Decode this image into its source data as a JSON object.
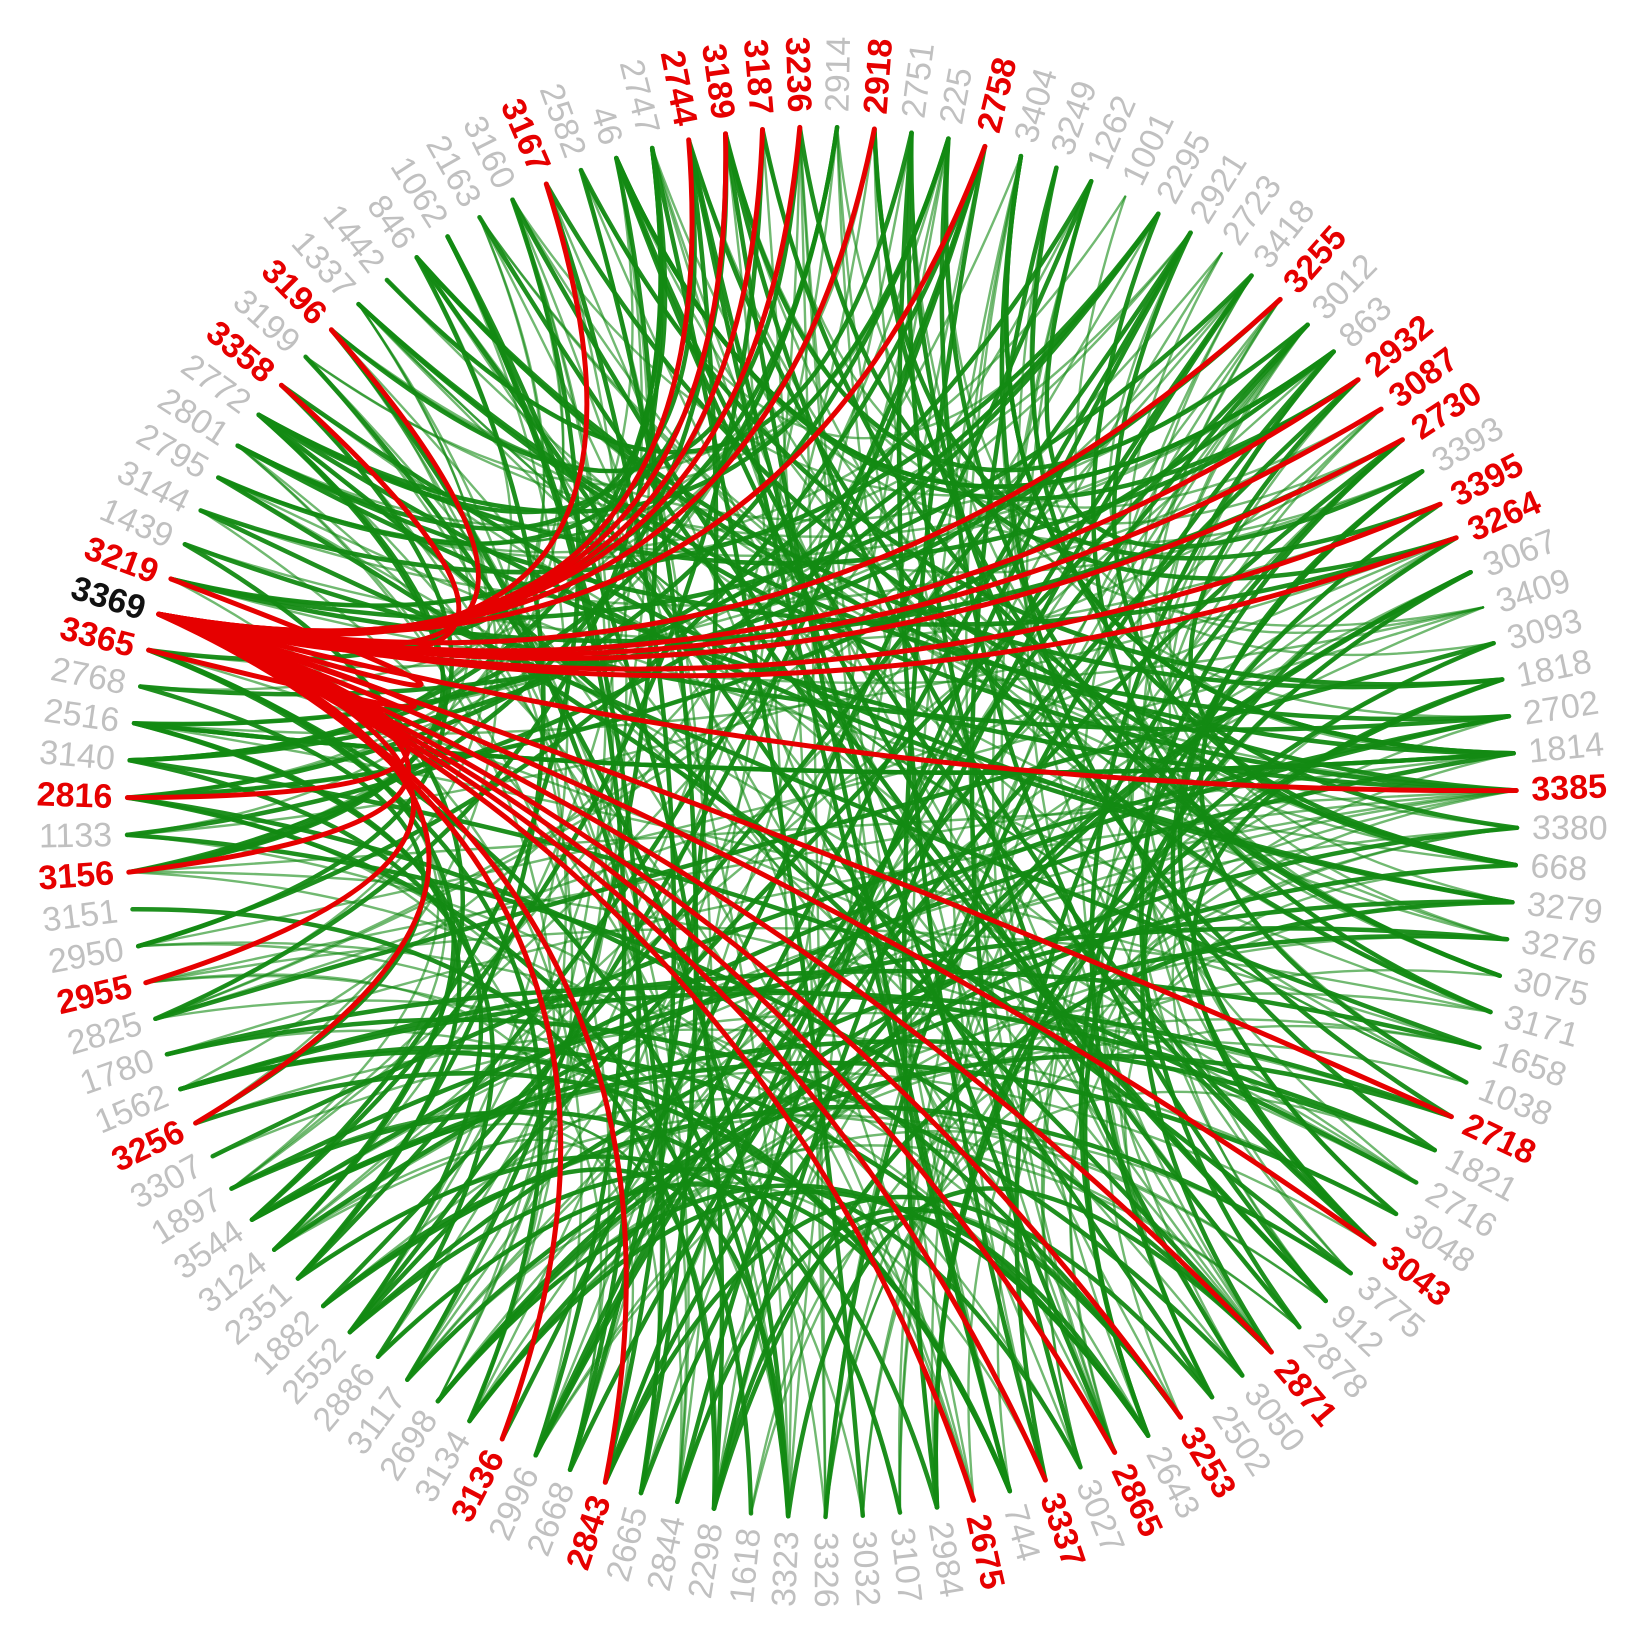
{
  "nodes": [
    {
      "label": "3369",
      "kind": "center"
    },
    {
      "label": "3219",
      "kind": "highlight"
    },
    {
      "label": "1439",
      "kind": "plain"
    },
    {
      "label": "3144",
      "kind": "plain"
    },
    {
      "label": "2795",
      "kind": "plain"
    },
    {
      "label": "2801",
      "kind": "plain"
    },
    {
      "label": "2772",
      "kind": "plain"
    },
    {
      "label": "3358",
      "kind": "highlight"
    },
    {
      "label": "3199",
      "kind": "plain"
    },
    {
      "label": "3196",
      "kind": "highlight"
    },
    {
      "label": "1337",
      "kind": "plain"
    },
    {
      "label": "1442",
      "kind": "plain"
    },
    {
      "label": "846",
      "kind": "plain"
    },
    {
      "label": "1062",
      "kind": "plain"
    },
    {
      "label": "2163",
      "kind": "plain"
    },
    {
      "label": "3160",
      "kind": "plain"
    },
    {
      "label": "3167",
      "kind": "highlight"
    },
    {
      "label": "2582",
      "kind": "plain"
    },
    {
      "label": "46",
      "kind": "plain"
    },
    {
      "label": "2747",
      "kind": "plain"
    },
    {
      "label": "2744",
      "kind": "highlight"
    },
    {
      "label": "3189",
      "kind": "highlight"
    },
    {
      "label": "3187",
      "kind": "highlight"
    },
    {
      "label": "3236",
      "kind": "highlight"
    },
    {
      "label": "2914",
      "kind": "plain"
    },
    {
      "label": "2918",
      "kind": "highlight"
    },
    {
      "label": "2751",
      "kind": "plain"
    },
    {
      "label": "225",
      "kind": "plain"
    },
    {
      "label": "2758",
      "kind": "highlight"
    },
    {
      "label": "3404",
      "kind": "plain"
    },
    {
      "label": "3249",
      "kind": "plain"
    },
    {
      "label": "1262",
      "kind": "plain"
    },
    {
      "label": "1001",
      "kind": "plain"
    },
    {
      "label": "2295",
      "kind": "plain"
    },
    {
      "label": "2921",
      "kind": "plain"
    },
    {
      "label": "2723",
      "kind": "plain"
    },
    {
      "label": "3418",
      "kind": "plain"
    },
    {
      "label": "3255",
      "kind": "highlight"
    },
    {
      "label": "3012",
      "kind": "plain"
    },
    {
      "label": "863",
      "kind": "plain"
    },
    {
      "label": "2932",
      "kind": "highlight"
    },
    {
      "label": "3087",
      "kind": "highlight"
    },
    {
      "label": "2730",
      "kind": "highlight"
    },
    {
      "label": "3393",
      "kind": "plain"
    },
    {
      "label": "3395",
      "kind": "highlight"
    },
    {
      "label": "3264",
      "kind": "highlight"
    },
    {
      "label": "3067",
      "kind": "plain"
    },
    {
      "label": "3409",
      "kind": "plain"
    },
    {
      "label": "3093",
      "kind": "plain"
    },
    {
      "label": "1818",
      "kind": "plain"
    },
    {
      "label": "2702",
      "kind": "plain"
    },
    {
      "label": "1814",
      "kind": "plain"
    },
    {
      "label": "3385",
      "kind": "highlight"
    },
    {
      "label": "3380",
      "kind": "plain"
    },
    {
      "label": "668",
      "kind": "plain"
    },
    {
      "label": "3279",
      "kind": "plain"
    },
    {
      "label": "3276",
      "kind": "plain"
    },
    {
      "label": "3075",
      "kind": "plain"
    },
    {
      "label": "3171",
      "kind": "plain"
    },
    {
      "label": "1658",
      "kind": "plain"
    },
    {
      "label": "1038",
      "kind": "plain"
    },
    {
      "label": "2718",
      "kind": "highlight"
    },
    {
      "label": "1821",
      "kind": "plain"
    },
    {
      "label": "2716",
      "kind": "plain"
    },
    {
      "label": "3048",
      "kind": "plain"
    },
    {
      "label": "3043",
      "kind": "highlight"
    },
    {
      "label": "3775",
      "kind": "plain"
    },
    {
      "label": "912",
      "kind": "plain"
    },
    {
      "label": "2878",
      "kind": "plain"
    },
    {
      "label": "2871",
      "kind": "highlight"
    },
    {
      "label": "3050",
      "kind": "plain"
    },
    {
      "label": "2502",
      "kind": "plain"
    },
    {
      "label": "3253",
      "kind": "highlight"
    },
    {
      "label": "2643",
      "kind": "plain"
    },
    {
      "label": "2865",
      "kind": "highlight"
    },
    {
      "label": "3027",
      "kind": "plain"
    },
    {
      "label": "3337",
      "kind": "highlight"
    },
    {
      "label": "744",
      "kind": "plain"
    },
    {
      "label": "2675",
      "kind": "highlight"
    },
    {
      "label": "2984",
      "kind": "plain"
    },
    {
      "label": "3107",
      "kind": "plain"
    },
    {
      "label": "3032",
      "kind": "plain"
    },
    {
      "label": "3326",
      "kind": "plain"
    },
    {
      "label": "3323",
      "kind": "plain"
    },
    {
      "label": "1618",
      "kind": "plain"
    },
    {
      "label": "2298",
      "kind": "plain"
    },
    {
      "label": "2844",
      "kind": "plain"
    },
    {
      "label": "2665",
      "kind": "plain"
    },
    {
      "label": "2843",
      "kind": "highlight"
    },
    {
      "label": "2668",
      "kind": "plain"
    },
    {
      "label": "2996",
      "kind": "plain"
    },
    {
      "label": "3136",
      "kind": "highlight"
    },
    {
      "label": "3134",
      "kind": "plain"
    },
    {
      "label": "2698",
      "kind": "plain"
    },
    {
      "label": "3117",
      "kind": "plain"
    },
    {
      "label": "2886",
      "kind": "plain"
    },
    {
      "label": "2552",
      "kind": "plain"
    },
    {
      "label": "1882",
      "kind": "plain"
    },
    {
      "label": "2351",
      "kind": "plain"
    },
    {
      "label": "3124",
      "kind": "plain"
    },
    {
      "label": "3544",
      "kind": "plain"
    },
    {
      "label": "1897",
      "kind": "plain"
    },
    {
      "label": "3307",
      "kind": "plain"
    },
    {
      "label": "3256",
      "kind": "highlight"
    },
    {
      "label": "1562",
      "kind": "plain"
    },
    {
      "label": "1780",
      "kind": "plain"
    },
    {
      "label": "2825",
      "kind": "plain"
    },
    {
      "label": "2955",
      "kind": "highlight"
    },
    {
      "label": "2950",
      "kind": "plain"
    },
    {
      "label": "3151",
      "kind": "plain"
    },
    {
      "label": "3156",
      "kind": "highlight"
    },
    {
      "label": "1133",
      "kind": "plain"
    },
    {
      "label": "2816",
      "kind": "highlight"
    },
    {
      "label": "3140",
      "kind": "plain"
    },
    {
      "label": "2516",
      "kind": "plain"
    },
    {
      "label": "2768",
      "kind": "plain"
    },
    {
      "label": "3365",
      "kind": "highlight"
    }
  ],
  "colors": {
    "highlight_label": "#e60000",
    "plain_label": "#c0c0c0",
    "center_label": "#111111",
    "highlight_edge": "#e60000",
    "normal_edge": "#138a13",
    "background": "#ffffff"
  }
}
